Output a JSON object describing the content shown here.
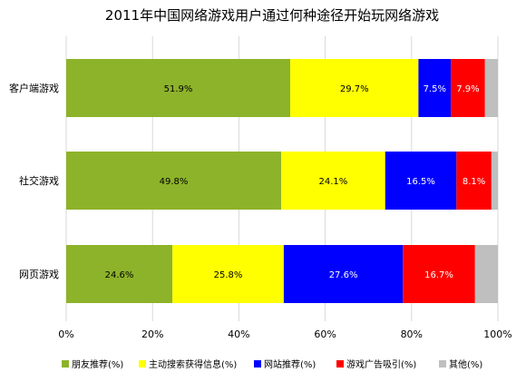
{
  "chart_data": {
    "type": "bar",
    "orientation": "horizontal",
    "stacked": true,
    "title": "2011年中国网络游戏用户通过何种途径开始玩网络游戏",
    "categories": [
      "客户端游戏",
      "社交游戏",
      "网页游戏"
    ],
    "xlim": [
      0,
      100
    ],
    "xticks": [
      "0%",
      "20%",
      "40%",
      "60%",
      "80%",
      "100%"
    ],
    "grid": true,
    "legend_position": "bottom",
    "series": [
      {
        "name": "朋友推荐(%)",
        "color": "#8db32a",
        "values": [
          51.9,
          49.8,
          24.6
        ],
        "labels": [
          "51.9%",
          "49.8%",
          "24.6%"
        ],
        "label_color": "#000000"
      },
      {
        "name": "主动搜索获得信息(%)",
        "color": "#ffff00",
        "values": [
          29.7,
          24.1,
          25.8
        ],
        "labels": [
          "29.7%",
          "24.1%",
          "25.8%"
        ],
        "label_color": "#000000"
      },
      {
        "name": "网站推荐(%)",
        "color": "#0000ff",
        "values": [
          7.5,
          16.5,
          27.6
        ],
        "labels": [
          "7.5%",
          "16.5%",
          "27.6%"
        ],
        "label_color": "#ffffff"
      },
      {
        "name": "游戏广告吸引(%)",
        "color": "#ff0000",
        "values": [
          7.9,
          8.1,
          16.7
        ],
        "labels": [
          "7.9%",
          "8.1%",
          "16.7%"
        ],
        "label_color": "#ffffff"
      },
      {
        "name": "其他(%)",
        "color": "#bfbfbf",
        "values": [
          3.0,
          1.5,
          5.3
        ],
        "labels": [
          "",
          "",
          ""
        ],
        "label_color": "#000000"
      }
    ]
  }
}
